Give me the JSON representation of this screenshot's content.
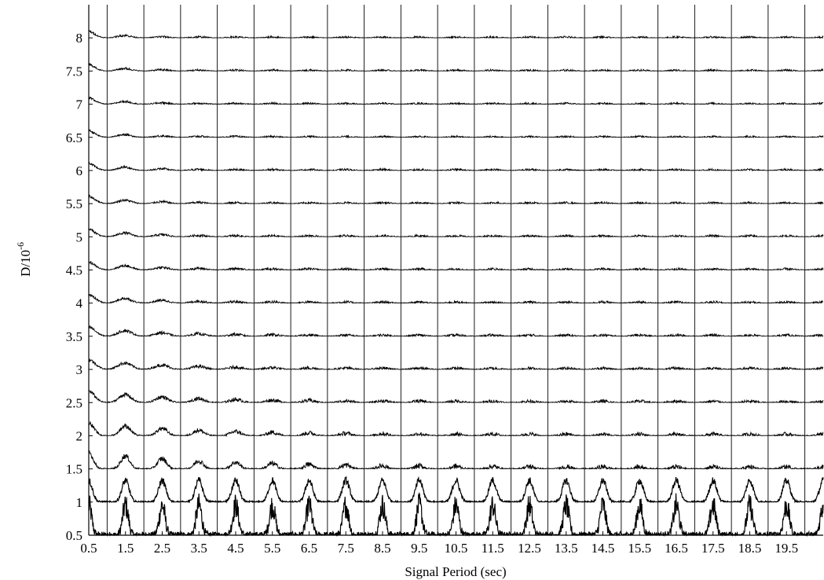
{
  "chart_data": {
    "type": "line",
    "title": "",
    "xlabel": "Signal Period (sec)",
    "ylabel": {
      "base": "D/10",
      "superscript": "-6"
    },
    "x_ticks": [
      "0.5",
      "1.5",
      "2.5",
      "3.5",
      "4.5",
      "5.5",
      "6.5",
      "7.5",
      "8.5",
      "9.5",
      "10.5",
      "11.5",
      "12.5",
      "13.5",
      "14.5",
      "15.5",
      "16.5",
      "17.5",
      "18.5",
      "19.5"
    ],
    "y_ticks": [
      "0.5",
      "1",
      "1.5",
      "2",
      "2.5",
      "3",
      "3.5",
      "4",
      "4.5",
      "5",
      "5.5",
      "6",
      "6.5",
      "7",
      "7.5",
      "8"
    ],
    "xlim": [
      0.5,
      20.5
    ],
    "ylim": [
      0.5,
      8.5
    ],
    "grid": true,
    "description_series": "One trace per D value (0.5 to 8 in steps of 0.5); each trace is a periodic response histogram peaking near each half-integer signal period, with amplitude decreasing as D increases.",
    "series": [
      {
        "d": 0.5,
        "amplitude": 0.9
      },
      {
        "d": 1.0,
        "amplitude": 0.65
      },
      {
        "d": 1.5,
        "amplitude": 0.5
      },
      {
        "d": 2.0,
        "amplitude": 0.4
      },
      {
        "d": 2.5,
        "amplitude": 0.35
      },
      {
        "d": 3.0,
        "amplitude": 0.3
      },
      {
        "d": 3.5,
        "amplitude": 0.28
      },
      {
        "d": 4.0,
        "amplitude": 0.25
      },
      {
        "d": 4.5,
        "amplitude": 0.24
      },
      {
        "d": 5.0,
        "amplitude": 0.23
      },
      {
        "d": 5.5,
        "amplitude": 0.22
      },
      {
        "d": 6.0,
        "amplitude": 0.22
      },
      {
        "d": 6.5,
        "amplitude": 0.2
      },
      {
        "d": 7.0,
        "amplitude": 0.2
      },
      {
        "d": 7.5,
        "amplitude": 0.2
      },
      {
        "d": 8.0,
        "amplitude": 0.2
      }
    ]
  }
}
